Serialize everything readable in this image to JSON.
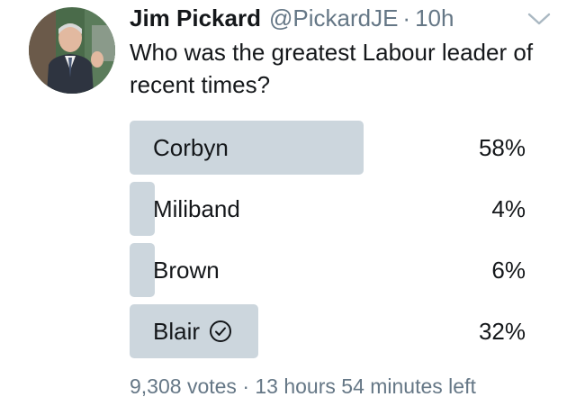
{
  "tweet": {
    "author": {
      "display_name": "Jim Pickard",
      "handle": "@PickardJE",
      "separator": "·",
      "time": "10h"
    },
    "text": "Who was the greatest Labour leader of recent times?",
    "menu_icon": "chevron-down-icon"
  },
  "poll": {
    "options": [
      {
        "label": "Corbyn",
        "percent": "58%",
        "fraction": 0.58,
        "selected": false
      },
      {
        "label": "Miliband",
        "percent": "4%",
        "fraction": 0.04,
        "selected": false
      },
      {
        "label": "Brown",
        "percent": "6%",
        "fraction": 0.06,
        "selected": false
      },
      {
        "label": "Blair",
        "percent": "32%",
        "fraction": 0.32,
        "selected": true
      }
    ],
    "votes": "9,308 votes",
    "separator": "·",
    "time_left": "13 hours 54 minutes left"
  },
  "colors": {
    "bar": "#ccd6dd",
    "muted_text": "#657786",
    "text": "#14171a"
  }
}
